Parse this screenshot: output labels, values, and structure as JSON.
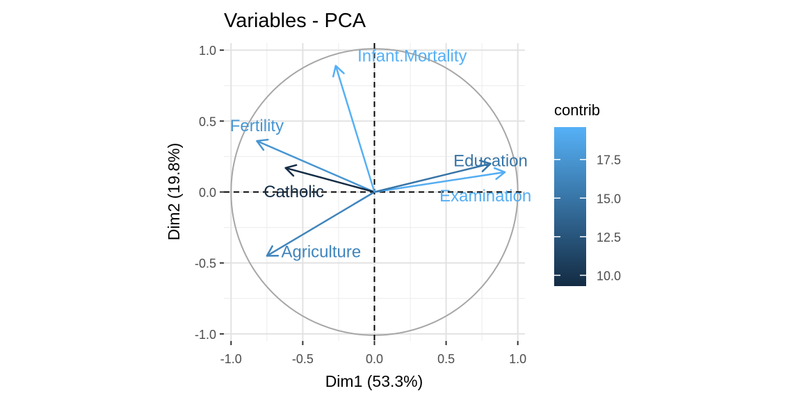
{
  "chart_data": {
    "type": "scatter",
    "subtype": "pca-variable-correlation-circle",
    "title": "Variables - PCA",
    "xlabel": "Dim1 (53.3%)",
    "ylabel": "Dim2 (19.8%)",
    "xlim": [
      -1.05,
      1.05
    ],
    "ylim": [
      -1.05,
      1.05
    ],
    "xticks": [
      -1.0,
      -0.5,
      0.0,
      0.5,
      1.0
    ],
    "xtick_labels": [
      "-1.0",
      "-0.5",
      "0.0",
      "0.5",
      "1.0"
    ],
    "yticks": [
      1.0,
      0.5,
      0.0,
      -0.5,
      -1.0
    ],
    "ytick_labels": [
      "1.0",
      "0.5",
      "0.0",
      "-0.5",
      "-1.0"
    ],
    "grid": true,
    "unit_circle": true,
    "reference_lines": [
      0,
      0
    ],
    "variables": [
      {
        "name": "Fertility",
        "x": -0.82,
        "y": 0.36,
        "contrib": 17.5
      },
      {
        "name": "Agriculture",
        "x": -0.75,
        "y": -0.45,
        "contrib": 16.2
      },
      {
        "name": "Examination",
        "x": 0.91,
        "y": 0.14,
        "contrib": 19.3
      },
      {
        "name": "Education",
        "x": 0.81,
        "y": 0.2,
        "contrib": 15.0
      },
      {
        "name": "Catholic",
        "x": -0.62,
        "y": 0.17,
        "contrib": 9.4
      },
      {
        "name": "Infant.Mortality",
        "x": -0.27,
        "y": 0.89,
        "contrib": 19.5
      }
    ],
    "legend": {
      "title": "contrib",
      "placement": "right",
      "range": [
        9.3,
        19.6
      ],
      "ticks": [
        17.5,
        15.0,
        12.5,
        10.0
      ],
      "tick_labels": [
        "17.5",
        "15.0",
        "12.5",
        "10.0"
      ],
      "color_low": "#132b43",
      "color_high": "#56b1f7"
    }
  }
}
